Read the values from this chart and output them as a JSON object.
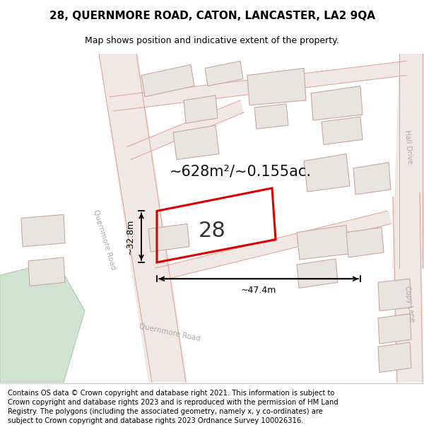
{
  "title_line1": "28, QUERNMORE ROAD, CATON, LANCASTER, LA2 9QA",
  "title_line2": "Map shows position and indicative extent of the property.",
  "footer_text": "Contains OS data © Crown copyright and database right 2021. This information is subject to Crown copyright and database rights 2023 and is reproduced with the permission of HM Land Registry. The polygons (including the associated geometry, namely x, y co-ordinates) are subject to Crown copyright and database rights 2023 Ordnance Survey 100026316.",
  "area_label": "~628m²/~0.155ac.",
  "property_number": "28",
  "dim_width": "~47.4m",
  "dim_height": "~32.8m",
  "map_bg": "#f8f6f3",
  "building_fill": "#e8e5e0",
  "building_edge": "#c8a8a0",
  "property_outline_color": "#dd0000",
  "green_area_color": "#d0e4d0",
  "road_line_color": "#e0a090",
  "road_fill": "#f0e8e4",
  "road_label_color": "#aaaaaa",
  "title_fontsize": 11,
  "subtitle_fontsize": 9,
  "footer_fontsize": 7.2,
  "area_fontsize": 15,
  "number_fontsize": 22,
  "dim_fontsize": 9,
  "road_label_fontsize": 7.5
}
